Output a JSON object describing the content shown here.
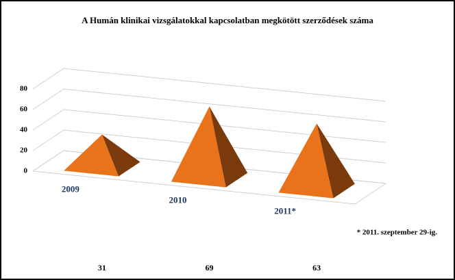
{
  "chart_data": {
    "type": "pyramid3d",
    "title": "A Humán klinikai vizsgálatokkal kapcsolatban megkötött szerződések száma",
    "categories": [
      "2009",
      "2010",
      "2011*"
    ],
    "values": [
      31,
      69,
      63
    ],
    "ylim": [
      0,
      80
    ],
    "yticks": [
      0,
      20,
      40,
      60,
      80
    ],
    "grid": true,
    "colors": {
      "front": "#e8731a",
      "side": "#7a3a0c"
    },
    "footnote": "* 2011. szeptember 29-ig."
  }
}
